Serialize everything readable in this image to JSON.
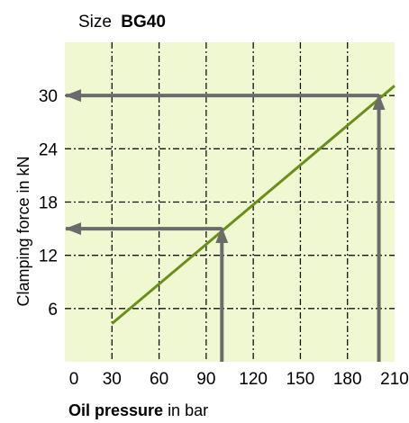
{
  "chart_data": {
    "type": "line",
    "title_prefix": "Size",
    "title_bold": "BG40",
    "xlabel_bold": "Oil pressure",
    "xlabel_rest": " in bar",
    "ylabel": "Clamping force in kN",
    "xlim": [
      0,
      210
    ],
    "ylim": [
      0,
      36
    ],
    "x_ticks": [
      0,
      30,
      60,
      90,
      120,
      150,
      180,
      210
    ],
    "y_ticks": [
      6,
      12,
      18,
      24,
      30
    ],
    "grid": true,
    "plot_background": "#f0f8d2",
    "series": [
      {
        "x": [
          30,
          210
        ],
        "y": [
          4.3,
          31.1
        ],
        "color": "#6b8e1a"
      }
    ],
    "annotations": [
      {
        "kind": "reading",
        "from_x": 100,
        "to_y": 15,
        "color": "#6b6b6b"
      },
      {
        "kind": "reading",
        "from_x": 200,
        "to_y": 30,
        "color": "#6b6b6b"
      }
    ]
  }
}
